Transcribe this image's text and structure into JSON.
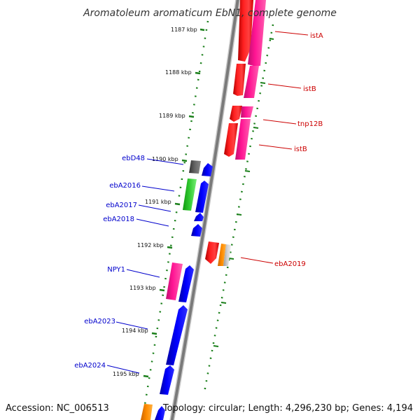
{
  "title": "Aromatoleum aromaticum EbN1, complete genome",
  "accession": "Accession: NC_006513",
  "topology": "Topology: circular; Length: 4,296,230 bp; Genes: 4,194",
  "scale": {
    "unit": "kbp",
    "ticks": [
      "1187 kbp",
      "1188 kbp",
      "1189 kbp",
      "1190 kbp",
      "1191 kbp",
      "1192 kbp",
      "1193 kbp",
      "1194 kbp",
      "1195 kbp"
    ]
  },
  "colors": {
    "backbone": "#808080",
    "scale_ticks": "#1a7f1a",
    "forward_label": "#cc0000",
    "reverse_label": "#0000cc",
    "red_gene": "#ff0000",
    "pink_gene": "#ff1493",
    "blue_gene": "#0000ff",
    "green_gene": "#22bb22",
    "gray_gene": "#555555",
    "orange_gene": "#ff8c00",
    "light_gray_gene": "#c0c0c0"
  },
  "labels": {
    "forward": [
      "istA",
      "istB",
      "tnp12B",
      "istB",
      "ebA2019"
    ],
    "reverse": [
      "ebD48",
      "ebA2016",
      "ebA2017",
      "ebA2018",
      "NPY1",
      "ebA2023",
      "ebA2024"
    ]
  }
}
